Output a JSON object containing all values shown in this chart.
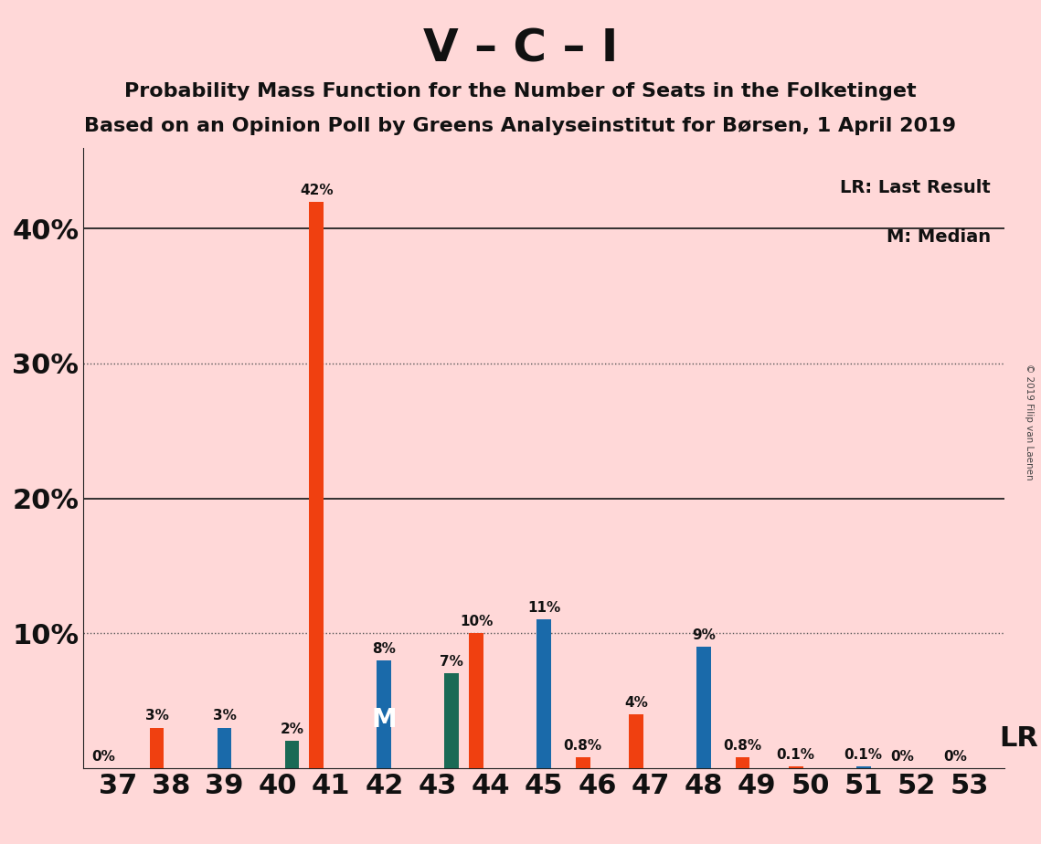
{
  "title": "V – C – I",
  "subtitle1": "Probability Mass Function for the Number of Seats in the Folketinget",
  "subtitle2": "Based on an Opinion Poll by Greens Analyseinstitut for Børsen, 1 April 2019",
  "copyright": "© 2019 Filip van Laenen",
  "legend_lr": "LR: Last Result",
  "legend_m": "M: Median",
  "lr_label": "LR",
  "seats": [
    37,
    38,
    39,
    40,
    41,
    42,
    43,
    44,
    45,
    46,
    47,
    48,
    49,
    50,
    51,
    52,
    53
  ],
  "v_values": [
    0.0,
    3.0,
    0.0,
    0.0,
    42.0,
    0.0,
    0.0,
    10.0,
    0.0,
    0.8,
    4.0,
    0.0,
    0.8,
    0.1,
    0.0,
    0.0,
    0.0
  ],
  "c_values": [
    0.0,
    0.0,
    3.0,
    0.0,
    0.0,
    8.0,
    0.0,
    0.0,
    11.0,
    0.0,
    0.0,
    9.0,
    0.0,
    0.0,
    0.1,
    0.0,
    0.0
  ],
  "i_values": [
    0.0,
    0.0,
    0.0,
    2.0,
    0.0,
    0.0,
    7.0,
    0.0,
    0.0,
    0.0,
    0.0,
    0.0,
    0.0,
    0.0,
    0.0,
    0.0,
    0.0
  ],
  "show_v_label": [
    true,
    true,
    false,
    false,
    true,
    false,
    false,
    true,
    false,
    true,
    true,
    false,
    true,
    true,
    false,
    true,
    true
  ],
  "show_c_label": [
    false,
    false,
    true,
    false,
    false,
    true,
    false,
    false,
    true,
    false,
    false,
    true,
    false,
    false,
    true,
    false,
    false
  ],
  "show_i_label": [
    false,
    false,
    false,
    true,
    false,
    false,
    true,
    false,
    false,
    false,
    false,
    false,
    false,
    false,
    false,
    false,
    false
  ],
  "v_color": "#f04010",
  "c_color": "#1a6aaa",
  "i_color": "#1a6a55",
  "background_color": "#ffd8d8",
  "bar_width": 0.27,
  "ylim": [
    0,
    46
  ],
  "yticks": [
    0,
    10,
    20,
    30,
    40
  ],
  "ytick_labels": [
    "",
    "10%",
    "20%",
    "30%",
    "40%"
  ],
  "median_seat": 42,
  "lr_seat": 53,
  "bar_label_fontsize": 11,
  "title_fontsize": 36,
  "subtitle_fontsize": 16,
  "axis_label_fontsize": 22
}
